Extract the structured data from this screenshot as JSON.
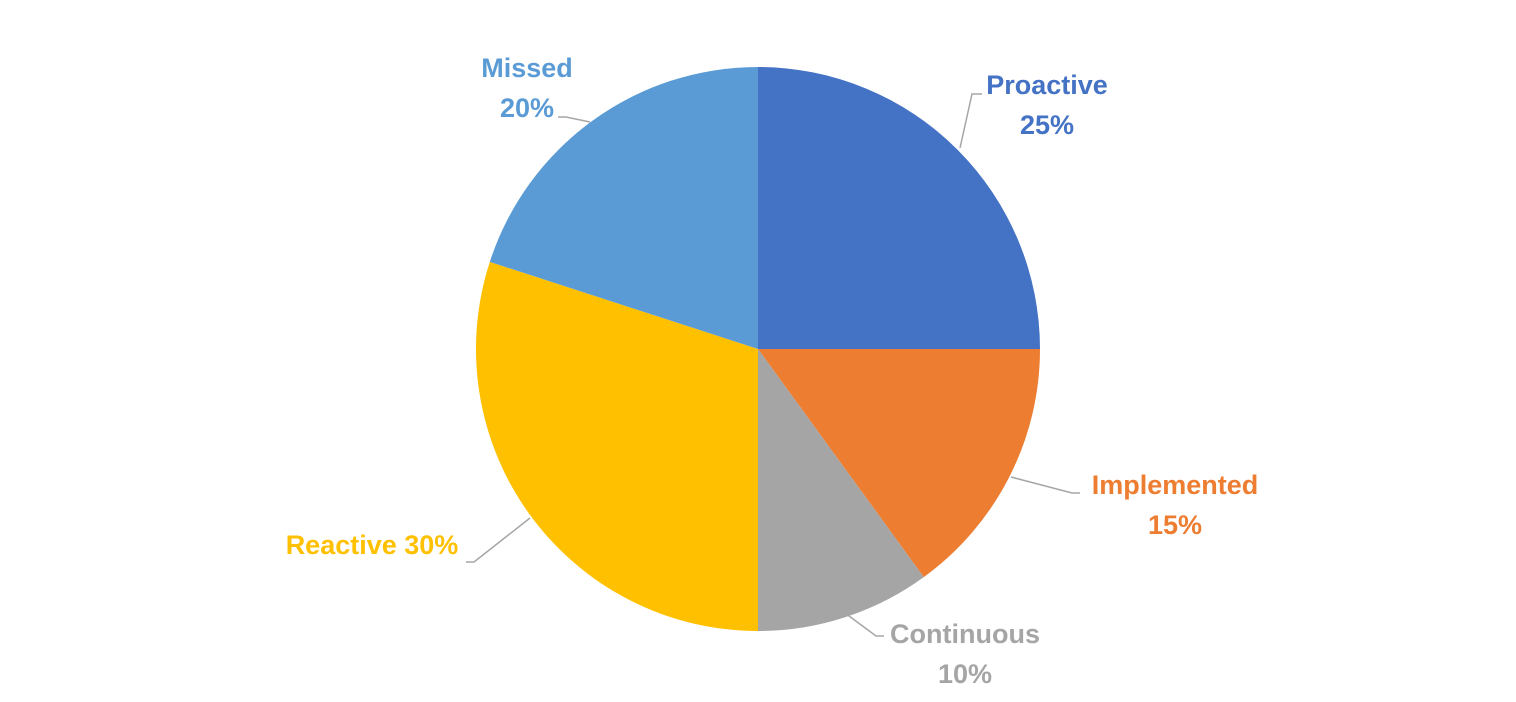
{
  "chart_data": {
    "type": "pie",
    "title": "",
    "slices": [
      {
        "label": "Proactive",
        "value": 25,
        "value_text": "25%",
        "color": "#4472C4"
      },
      {
        "label": "Implemented",
        "value": 15,
        "value_text": "15%",
        "color": "#ED7D31"
      },
      {
        "label": "Continuous",
        "value": 10,
        "value_text": "10%",
        "color": "#A5A5A5"
      },
      {
        "label": "Reactive",
        "value": 30,
        "value_text": "30%",
        "color": "#FFC000"
      },
      {
        "label": "Missed",
        "value": 20,
        "value_text": "20%",
        "color": "#5B9BD5"
      }
    ],
    "start_angle": "12 o'clock",
    "direction": "clockwise",
    "legend": "none",
    "data_labels": "category name and percentage, outside with leader lines"
  }
}
